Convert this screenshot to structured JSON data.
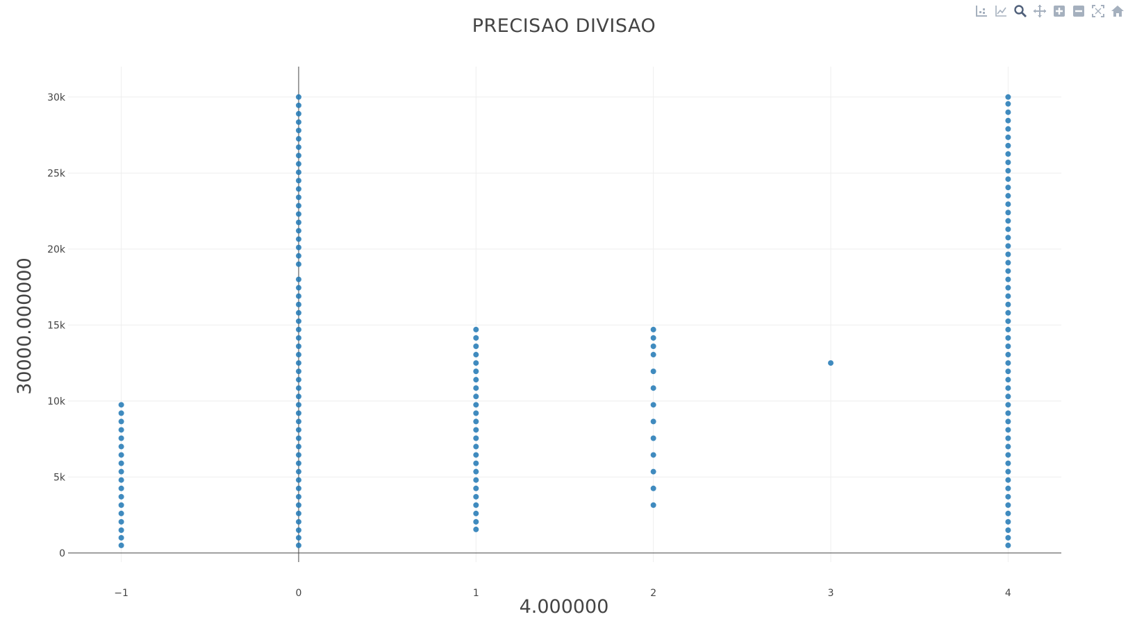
{
  "chart_data": {
    "type": "scatter",
    "title": "PRECISAO DIVISAO",
    "xlabel": "4.000000",
    "ylabel": "30000.000000",
    "xlim": [
      -1.3,
      4.3
    ],
    "ylim": [
      -600,
      32000
    ],
    "xticks": [
      -1,
      0,
      1,
      2,
      3,
      4
    ],
    "xtick_labels": [
      "−1",
      "0",
      "1",
      "2",
      "3",
      "4"
    ],
    "yticks": [
      0,
      5000,
      10000,
      15000,
      20000,
      25000,
      30000
    ],
    "ytick_labels": [
      "0",
      "5k",
      "10k",
      "15k",
      "20k",
      "25k",
      "30k"
    ],
    "grid": true,
    "marker_color": "#1f77b4",
    "series": [
      {
        "points": [
          [
            -1,
            500
          ],
          [
            -1,
            1000
          ],
          [
            -1,
            1500
          ],
          [
            -1,
            2050
          ],
          [
            -1,
            2600
          ],
          [
            -1,
            3150
          ],
          [
            -1,
            3700
          ],
          [
            -1,
            4250
          ],
          [
            -1,
            4800
          ],
          [
            -1,
            5350
          ],
          [
            -1,
            5900
          ],
          [
            -1,
            6450
          ],
          [
            -1,
            7000
          ],
          [
            -1,
            7550
          ],
          [
            -1,
            8100
          ],
          [
            -1,
            8650
          ],
          [
            -1,
            9200
          ],
          [
            -1,
            9750
          ],
          [
            0,
            500
          ],
          [
            0,
            1000
          ],
          [
            0,
            1500
          ],
          [
            0,
            2050
          ],
          [
            0,
            2600
          ],
          [
            0,
            3150
          ],
          [
            0,
            3700
          ],
          [
            0,
            4250
          ],
          [
            0,
            4800
          ],
          [
            0,
            5350
          ],
          [
            0,
            5900
          ],
          [
            0,
            6450
          ],
          [
            0,
            7000
          ],
          [
            0,
            7550
          ],
          [
            0,
            8100
          ],
          [
            0,
            8650
          ],
          [
            0,
            9200
          ],
          [
            0,
            9750
          ],
          [
            0,
            10300
          ],
          [
            0,
            10850
          ],
          [
            0,
            11400
          ],
          [
            0,
            11950
          ],
          [
            0,
            12500
          ],
          [
            0,
            13050
          ],
          [
            0,
            13600
          ],
          [
            0,
            14150
          ],
          [
            0,
            14700
          ],
          [
            0,
            15250
          ],
          [
            0,
            15800
          ],
          [
            0,
            16350
          ],
          [
            0,
            16900
          ],
          [
            0,
            17450
          ],
          [
            0,
            18000
          ],
          [
            0,
            19000
          ],
          [
            0,
            19550
          ],
          [
            0,
            20100
          ],
          [
            0,
            20650
          ],
          [
            0,
            21200
          ],
          [
            0,
            21750
          ],
          [
            0,
            22300
          ],
          [
            0,
            22850
          ],
          [
            0,
            23400
          ],
          [
            0,
            23950
          ],
          [
            0,
            24500
          ],
          [
            0,
            25050
          ],
          [
            0,
            25600
          ],
          [
            0,
            26150
          ],
          [
            0,
            26700
          ],
          [
            0,
            27250
          ],
          [
            0,
            27800
          ],
          [
            0,
            28350
          ],
          [
            0,
            28900
          ],
          [
            0,
            29450
          ],
          [
            0,
            30000
          ],
          [
            1,
            1550
          ],
          [
            1,
            2050
          ],
          [
            1,
            2600
          ],
          [
            1,
            3150
          ],
          [
            1,
            3700
          ],
          [
            1,
            4250
          ],
          [
            1,
            4800
          ],
          [
            1,
            5350
          ],
          [
            1,
            5900
          ],
          [
            1,
            6450
          ],
          [
            1,
            7000
          ],
          [
            1,
            7550
          ],
          [
            1,
            8100
          ],
          [
            1,
            8650
          ],
          [
            1,
            9200
          ],
          [
            1,
            9750
          ],
          [
            1,
            10300
          ],
          [
            1,
            10850
          ],
          [
            1,
            11400
          ],
          [
            1,
            11950
          ],
          [
            1,
            12500
          ],
          [
            1,
            13050
          ],
          [
            1,
            13600
          ],
          [
            1,
            14150
          ],
          [
            1,
            14700
          ],
          [
            2,
            3150
          ],
          [
            2,
            4250
          ],
          [
            2,
            5350
          ],
          [
            2,
            6450
          ],
          [
            2,
            7550
          ],
          [
            2,
            8650
          ],
          [
            2,
            9750
          ],
          [
            2,
            10850
          ],
          [
            2,
            11950
          ],
          [
            2,
            13050
          ],
          [
            2,
            13600
          ],
          [
            2,
            14150
          ],
          [
            2,
            14700
          ],
          [
            3,
            12500
          ],
          [
            4,
            500
          ],
          [
            4,
            1000
          ],
          [
            4,
            1500
          ],
          [
            4,
            2050
          ],
          [
            4,
            2600
          ],
          [
            4,
            3150
          ],
          [
            4,
            3700
          ],
          [
            4,
            4250
          ],
          [
            4,
            4800
          ],
          [
            4,
            5350
          ],
          [
            4,
            5900
          ],
          [
            4,
            6450
          ],
          [
            4,
            7000
          ],
          [
            4,
            7550
          ],
          [
            4,
            8100
          ],
          [
            4,
            8650
          ],
          [
            4,
            9200
          ],
          [
            4,
            9750
          ],
          [
            4,
            10300
          ],
          [
            4,
            10850
          ],
          [
            4,
            11400
          ],
          [
            4,
            11950
          ],
          [
            4,
            12500
          ],
          [
            4,
            13050
          ],
          [
            4,
            13600
          ],
          [
            4,
            14150
          ],
          [
            4,
            14700
          ],
          [
            4,
            15250
          ],
          [
            4,
            15800
          ],
          [
            4,
            16350
          ],
          [
            4,
            16900
          ],
          [
            4,
            17450
          ],
          [
            4,
            18000
          ],
          [
            4,
            18550
          ],
          [
            4,
            19100
          ],
          [
            4,
            19650
          ],
          [
            4,
            20200
          ],
          [
            4,
            20750
          ],
          [
            4,
            21300
          ],
          [
            4,
            21850
          ],
          [
            4,
            22400
          ],
          [
            4,
            22950
          ],
          [
            4,
            23500
          ],
          [
            4,
            24050
          ],
          [
            4,
            24600
          ],
          [
            4,
            25150
          ],
          [
            4,
            25700
          ],
          [
            4,
            26250
          ],
          [
            4,
            26800
          ],
          [
            4,
            27350
          ],
          [
            4,
            27900
          ],
          [
            4,
            28450
          ],
          [
            4,
            29000
          ],
          [
            4,
            29550
          ],
          [
            4,
            30000
          ]
        ]
      }
    ]
  },
  "modebar": {
    "buttons": [
      {
        "name": "compare-data-on-hover-icon",
        "color": "#a5b0be"
      },
      {
        "name": "show-closest-data-icon",
        "color": "#a5b0be"
      },
      {
        "name": "zoom-icon",
        "color": "#50607a"
      },
      {
        "name": "pan-icon",
        "color": "#a5b0be"
      },
      {
        "name": "zoom-in-icon",
        "color": "#a5b0be"
      },
      {
        "name": "zoom-out-icon",
        "color": "#a5b0be"
      },
      {
        "name": "autoscale-icon",
        "color": "#a5b0be"
      },
      {
        "name": "reset-axes-icon",
        "color": "#a5b0be"
      }
    ]
  }
}
